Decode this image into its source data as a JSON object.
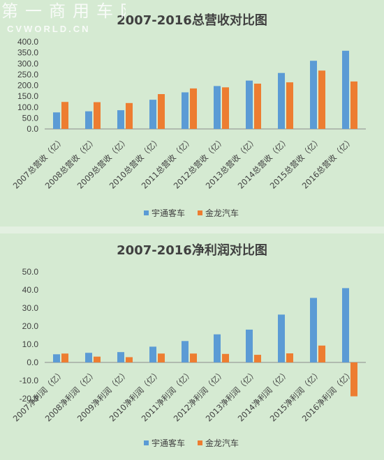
{
  "colors": {
    "series1": "#5b9bd5",
    "series2": "#ed7d31",
    "axis": "#8c8c8c"
  },
  "chart_data": [
    {
      "type": "bar",
      "title": "2007-2016总营收对比图",
      "categories": [
        "2007总营收（亿）",
        "2008总营收（亿）",
        "2009总营收（亿）",
        "2010总营收（亿）",
        "2011总营收（亿）",
        "2012总营收（亿）",
        "2013总营收（亿）",
        "2014总营收（亿）",
        "2015总营收（亿）",
        "2016总营收（亿）"
      ],
      "series": [
        {
          "name": "宇通客车",
          "values": [
            76,
            81,
            86,
            134,
            168,
            197,
            222,
            257,
            313,
            359
          ]
        },
        {
          "name": "金龙汽车",
          "values": [
            124,
            123,
            119,
            160,
            186,
            191,
            208,
            214,
            268,
            218
          ]
        }
      ],
      "ylim": [
        0,
        400
      ],
      "yticks": [
        "0.0",
        "50.0",
        "100.0",
        "150.0",
        "200.0",
        "250.0",
        "300.0",
        "350.0",
        "400.0"
      ],
      "xlabel": "",
      "ylabel": "",
      "grid": false,
      "legend": "bottom"
    },
    {
      "type": "bar",
      "title": "2007-2016净利润对比图",
      "categories": [
        "2007净利润（亿）",
        "2008净利润（亿）",
        "2009净利润（亿）",
        "2010净利润（亿）",
        "2011净利润（亿）",
        "2012净利润（亿）",
        "2013净利润（亿）",
        "2014净利润（亿）",
        "2015净利润（亿）",
        "2016净利润（亿）"
      ],
      "series": [
        {
          "name": "宇通客车",
          "values": [
            4.5,
            5.3,
            5.7,
            8.7,
            11.8,
            15.5,
            18.1,
            26.4,
            35.6,
            41.0
          ]
        },
        {
          "name": "金龙汽车",
          "values": [
            4.9,
            3.2,
            2.9,
            4.9,
            4.9,
            4.7,
            4.2,
            5.0,
            9.3,
            -18.7
          ]
        }
      ],
      "ylim": [
        -20,
        50
      ],
      "yticks": [
        "-20.0",
        "-10.0",
        "0.0",
        "10.0",
        "20.0",
        "30.0",
        "40.0",
        "50.0"
      ],
      "xlabel": "",
      "ylabel": "",
      "grid": false,
      "legend": "bottom"
    }
  ],
  "watermark": {
    "line1": "第一商用车网",
    "line2": "CVWORLD.CN"
  }
}
